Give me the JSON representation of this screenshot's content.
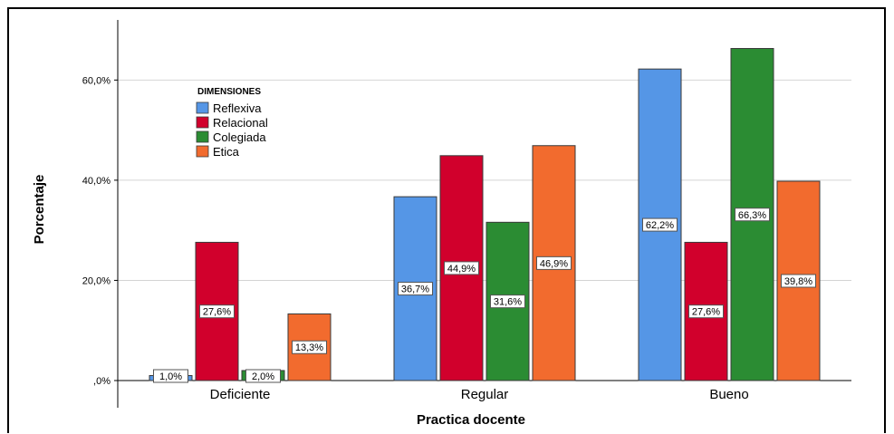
{
  "chart_data": {
    "type": "bar",
    "xlabel": "Practica docente",
    "ylabel": "Porcentaje",
    "categories": [
      "Deficiente",
      "Regular",
      "Bueno"
    ],
    "ylim": [
      0,
      72
    ],
    "yticks": [
      0,
      20,
      40,
      60
    ],
    "ytick_labels": [
      ",0%",
      "20,0%",
      "40,0%",
      "60,0%"
    ],
    "grid": true,
    "legend": {
      "title": "DIMENSIONES",
      "placement": "top-left"
    },
    "series": [
      {
        "name": "Reflexiva",
        "color": "#5596e6",
        "values": [
          1.0,
          36.7,
          62.2
        ],
        "labels": [
          "1,0%",
          "36,7%",
          "62,2%"
        ]
      },
      {
        "name": "Relacional",
        "color": "#d1002c",
        "values": [
          27.6,
          44.9,
          27.6
        ],
        "labels": [
          "27,6%",
          "44,9%",
          "27,6%"
        ]
      },
      {
        "name": "Colegiada",
        "color": "#2b8c33",
        "values": [
          2.0,
          31.6,
          66.3
        ],
        "labels": [
          "2,0%",
          "31,6%",
          "66,3%"
        ]
      },
      {
        "name": "Etica",
        "color": "#f26b2e",
        "values": [
          13.3,
          46.9,
          39.8
        ],
        "labels": [
          "13,3%",
          "46,9%",
          "39,8%"
        ]
      }
    ]
  }
}
